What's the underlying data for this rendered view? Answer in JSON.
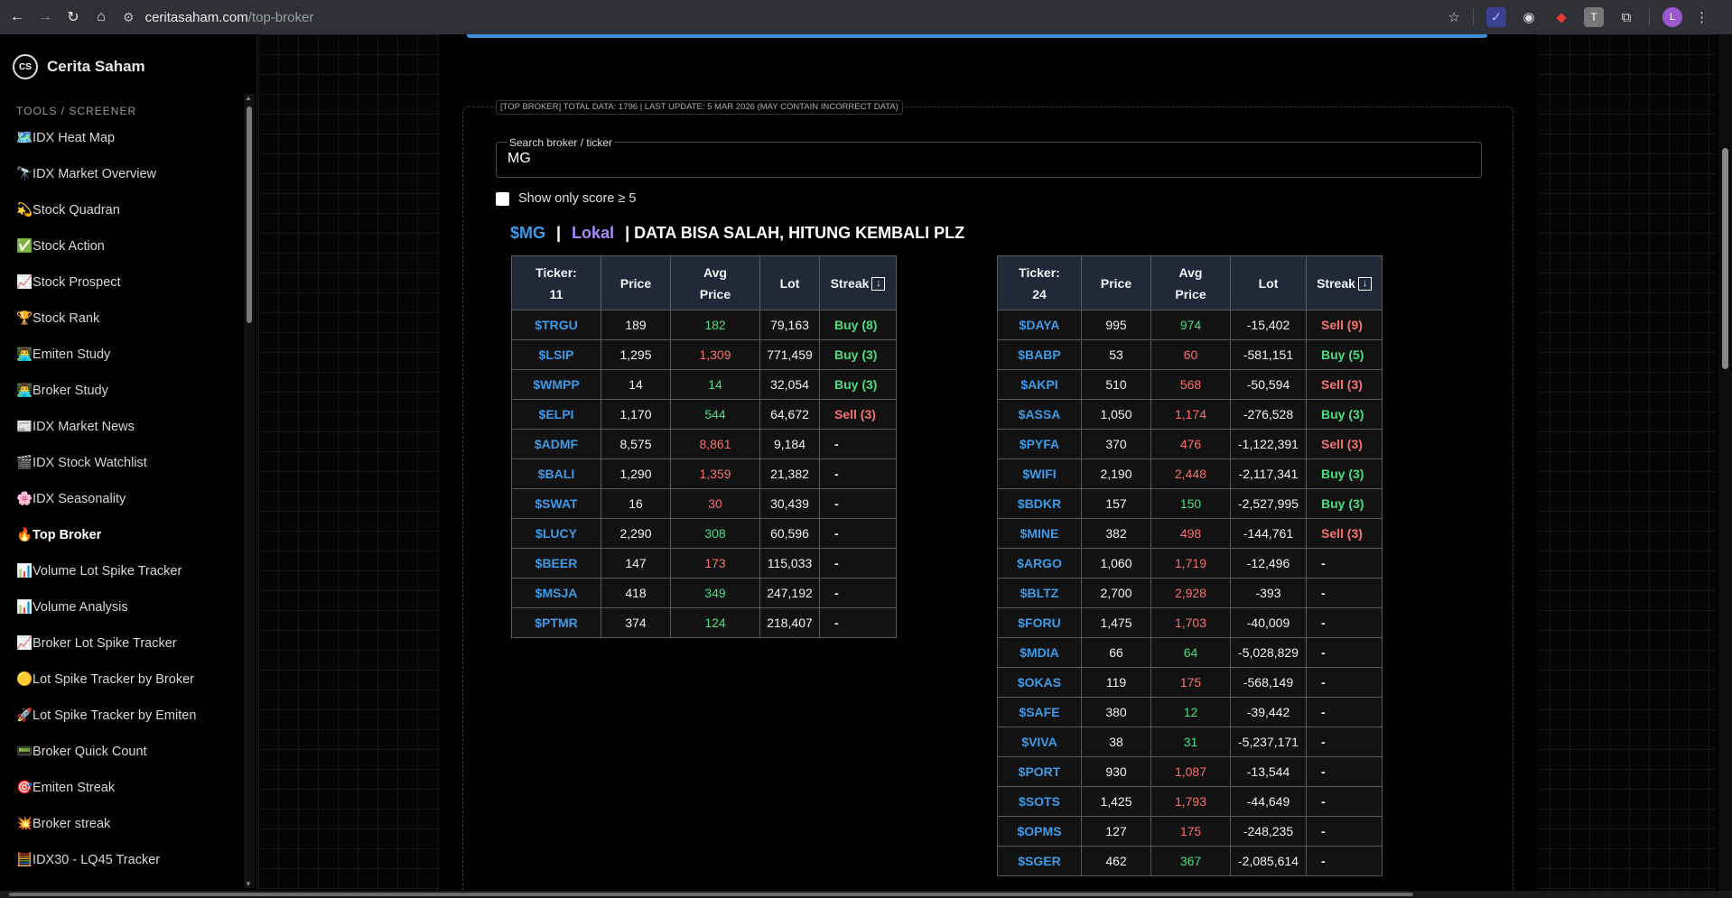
{
  "browser": {
    "url_host": "ceritasaham.com",
    "url_path": "/top-broker",
    "avatar_letter": "L"
  },
  "sidebar": {
    "brand_logo": "CS",
    "brand_name": "Cerita Saham",
    "section": "TOOLS / SCREENER",
    "items": [
      {
        "label": "🗺️IDX Heat Map"
      },
      {
        "label": "🔭IDX Market Overview"
      },
      {
        "label": "💫Stock Quadran"
      },
      {
        "label": "✅Stock Action"
      },
      {
        "label": "📈Stock Prospect"
      },
      {
        "label": "🏆Stock Rank"
      },
      {
        "label": "👨‍💻Emiten Study"
      },
      {
        "label": "👨‍💻Broker Study"
      },
      {
        "label": "📰IDX Market News"
      },
      {
        "label": "🎬IDX Stock Watchlist"
      },
      {
        "label": "🌸IDX Seasonality"
      },
      {
        "label": "🔥Top Broker",
        "active": true
      },
      {
        "label": "📊Volume Lot Spike Tracker"
      },
      {
        "label": "📊Volume Analysis"
      },
      {
        "label": "📈Broker Lot Spike Tracker"
      },
      {
        "label": "🟡Lot Spike Tracker by Broker"
      },
      {
        "label": "🚀Lot Spike Tracker by Emiten"
      },
      {
        "label": "📟Broker Quick Count"
      },
      {
        "label": "🎯Emiten Streak"
      },
      {
        "label": "💥Broker streak"
      },
      {
        "label": "🧮IDX30 - LQ45 Tracker"
      }
    ]
  },
  "panel": {
    "legend": "[TOP BROKER] TOTAL DATA: 1796 | LAST UPDATE: 5 MAR 2026 (MAY CONTAIN INCORRECT DATA)",
    "search_label": "Search broker / ticker",
    "search_value": "MG",
    "checkbox_label": "Show only score ≥ 5",
    "heading": {
      "ticker": "$MG",
      "sep": "|",
      "type": "Lokal",
      "note": "| DATA BISA SALAH, HITUNG KEMBALI PLZ"
    }
  },
  "table_headers": {
    "ticker": "Ticker:",
    "price": "Price",
    "avg1": "Avg",
    "avg2": "Price",
    "lot": "Lot",
    "streak": "Streak"
  },
  "buy_table": {
    "count": "11",
    "rows": [
      {
        "ticker": "$TRGU",
        "price": "189",
        "avg": "182",
        "avg_c": "up",
        "lot": "79,163",
        "streak": "Buy (8)",
        "st": "buy"
      },
      {
        "ticker": "$LSIP",
        "price": "1,295",
        "avg": "1,309",
        "avg_c": "dn",
        "lot": "771,459",
        "streak": "Buy (3)",
        "st": "buy"
      },
      {
        "ticker": "$WMPP",
        "price": "14",
        "avg": "14",
        "avg_c": "up",
        "lot": "32,054",
        "streak": "Buy (3)",
        "st": "buy"
      },
      {
        "ticker": "$ELPI",
        "price": "1,170",
        "avg": "544",
        "avg_c": "up",
        "lot": "64,672",
        "streak": "Sell (3)",
        "st": "sell"
      },
      {
        "ticker": "$ADMF",
        "price": "8,575",
        "avg": "8,861",
        "avg_c": "dn",
        "lot": "9,184",
        "streak": "-",
        "st": ""
      },
      {
        "ticker": "$BALI",
        "price": "1,290",
        "avg": "1,359",
        "avg_c": "dn",
        "lot": "21,382",
        "streak": "-",
        "st": ""
      },
      {
        "ticker": "$SWAT",
        "price": "16",
        "avg": "30",
        "avg_c": "dn",
        "lot": "30,439",
        "streak": "-",
        "st": ""
      },
      {
        "ticker": "$LUCY",
        "price": "2,290",
        "avg": "308",
        "avg_c": "up",
        "lot": "60,596",
        "streak": "-",
        "st": ""
      },
      {
        "ticker": "$BEER",
        "price": "147",
        "avg": "173",
        "avg_c": "dn",
        "lot": "115,033",
        "streak": "-",
        "st": ""
      },
      {
        "ticker": "$MSJA",
        "price": "418",
        "avg": "349",
        "avg_c": "up",
        "lot": "247,192",
        "streak": "-",
        "st": ""
      },
      {
        "ticker": "$PTMR",
        "price": "374",
        "avg": "124",
        "avg_c": "up",
        "lot": "218,407",
        "streak": "-",
        "st": ""
      }
    ]
  },
  "sell_table": {
    "count": "24",
    "rows": [
      {
        "ticker": "$DAYA",
        "price": "995",
        "avg": "974",
        "avg_c": "up",
        "lot": "-15,402",
        "streak": "Sell (9)",
        "st": "sell"
      },
      {
        "ticker": "$BABP",
        "price": "53",
        "avg": "60",
        "avg_c": "dn",
        "lot": "-581,151",
        "streak": "Buy (5)",
        "st": "buy"
      },
      {
        "ticker": "$AKPI",
        "price": "510",
        "avg": "568",
        "avg_c": "dn",
        "lot": "-50,594",
        "streak": "Sell (3)",
        "st": "sell"
      },
      {
        "ticker": "$ASSA",
        "price": "1,050",
        "avg": "1,174",
        "avg_c": "dn",
        "lot": "-276,528",
        "streak": "Buy (3)",
        "st": "buy"
      },
      {
        "ticker": "$PYFA",
        "price": "370",
        "avg": "476",
        "avg_c": "dn",
        "lot": "-1,122,391",
        "streak": "Sell (3)",
        "st": "sell"
      },
      {
        "ticker": "$WIFI",
        "price": "2,190",
        "avg": "2,448",
        "avg_c": "dn",
        "lot": "-2,117,341",
        "streak": "Buy (3)",
        "st": "buy"
      },
      {
        "ticker": "$BDKR",
        "price": "157",
        "avg": "150",
        "avg_c": "up",
        "lot": "-2,527,995",
        "streak": "Buy (3)",
        "st": "buy"
      },
      {
        "ticker": "$MINE",
        "price": "382",
        "avg": "498",
        "avg_c": "dn",
        "lot": "-144,761",
        "streak": "Sell (3)",
        "st": "sell"
      },
      {
        "ticker": "$ARGO",
        "price": "1,060",
        "avg": "1,719",
        "avg_c": "dn",
        "lot": "-12,496",
        "streak": "-",
        "st": ""
      },
      {
        "ticker": "$BLTZ",
        "price": "2,700",
        "avg": "2,928",
        "avg_c": "dn",
        "lot": "-393",
        "streak": "-",
        "st": ""
      },
      {
        "ticker": "$FORU",
        "price": "1,475",
        "avg": "1,703",
        "avg_c": "dn",
        "lot": "-40,009",
        "streak": "-",
        "st": ""
      },
      {
        "ticker": "$MDIA",
        "price": "66",
        "avg": "64",
        "avg_c": "up",
        "lot": "-5,028,829",
        "streak": "-",
        "st": ""
      },
      {
        "ticker": "$OKAS",
        "price": "119",
        "avg": "175",
        "avg_c": "dn",
        "lot": "-568,149",
        "streak": "-",
        "st": ""
      },
      {
        "ticker": "$SAFE",
        "price": "380",
        "avg": "12",
        "avg_c": "up",
        "lot": "-39,442",
        "streak": "-",
        "st": ""
      },
      {
        "ticker": "$VIVA",
        "price": "38",
        "avg": "31",
        "avg_c": "up",
        "lot": "-5,237,171",
        "streak": "-",
        "st": ""
      },
      {
        "ticker": "$PORT",
        "price": "930",
        "avg": "1,087",
        "avg_c": "dn",
        "lot": "-13,544",
        "streak": "-",
        "st": ""
      },
      {
        "ticker": "$SOTS",
        "price": "1,425",
        "avg": "1,793",
        "avg_c": "dn",
        "lot": "-44,649",
        "streak": "-",
        "st": ""
      },
      {
        "ticker": "$OPMS",
        "price": "127",
        "avg": "175",
        "avg_c": "dn",
        "lot": "-248,235",
        "streak": "-",
        "st": ""
      },
      {
        "ticker": "$SGER",
        "price": "462",
        "avg": "367",
        "avg_c": "up",
        "lot": "-2,085,614",
        "streak": "-",
        "st": ""
      }
    ]
  },
  "colors": {
    "ticker": "#3d9be9",
    "up": "#4ade80",
    "down": "#f87171",
    "header_bg": "#1f2937",
    "accent": "#3d8fd7"
  }
}
